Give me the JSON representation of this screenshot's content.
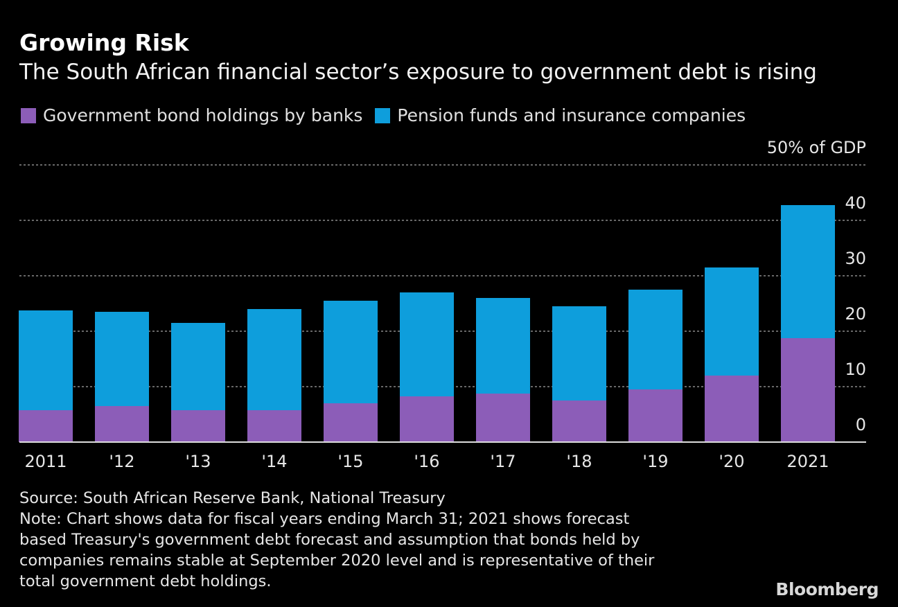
{
  "title": "Growing Risk",
  "subtitle": "The South African financial sector’s exposure to government debt is rising",
  "source": "Source: South African Reserve Bank, National Treasury",
  "note_lines": [
    "Note: Chart shows data for fiscal years ending March 31; 2021 shows forecast",
    "based Treasury's government debt forecast and assumption that bonds held by",
    "companies remains stable at September 2020 level and is representative of their",
    "total government debt holdings."
  ],
  "logo": "Bloomberg",
  "colors": {
    "banks": "#8c5db8",
    "pension": "#0e9edc"
  },
  "chart_data": {
    "type": "bar",
    "stacked": true,
    "title": "Growing Risk",
    "ylabel": "% of GDP",
    "ylim": [
      0,
      50
    ],
    "yticks": [
      "0",
      "10",
      "20",
      "30",
      "40",
      "50% of GDP"
    ],
    "ytick_values": [
      0,
      10,
      20,
      30,
      40,
      50
    ],
    "grid": true,
    "legend_position": "top-left",
    "categories": [
      "2011",
      "'12",
      "'13",
      "'14",
      "'15",
      "'16",
      "'17",
      "'18",
      "'19",
      "'20",
      "2021"
    ],
    "series": [
      {
        "name": "Government bond holdings by banks",
        "values": [
          5.75,
          6.5,
          5.75,
          5.75,
          7,
          8.25,
          8.75,
          7.5,
          9.5,
          12,
          18.75
        ]
      },
      {
        "name": "Pension funds and insurance companies",
        "values": [
          18,
          17,
          15.75,
          18.25,
          18.5,
          18.75,
          17.25,
          17,
          18,
          19.5,
          24
        ]
      }
    ]
  }
}
